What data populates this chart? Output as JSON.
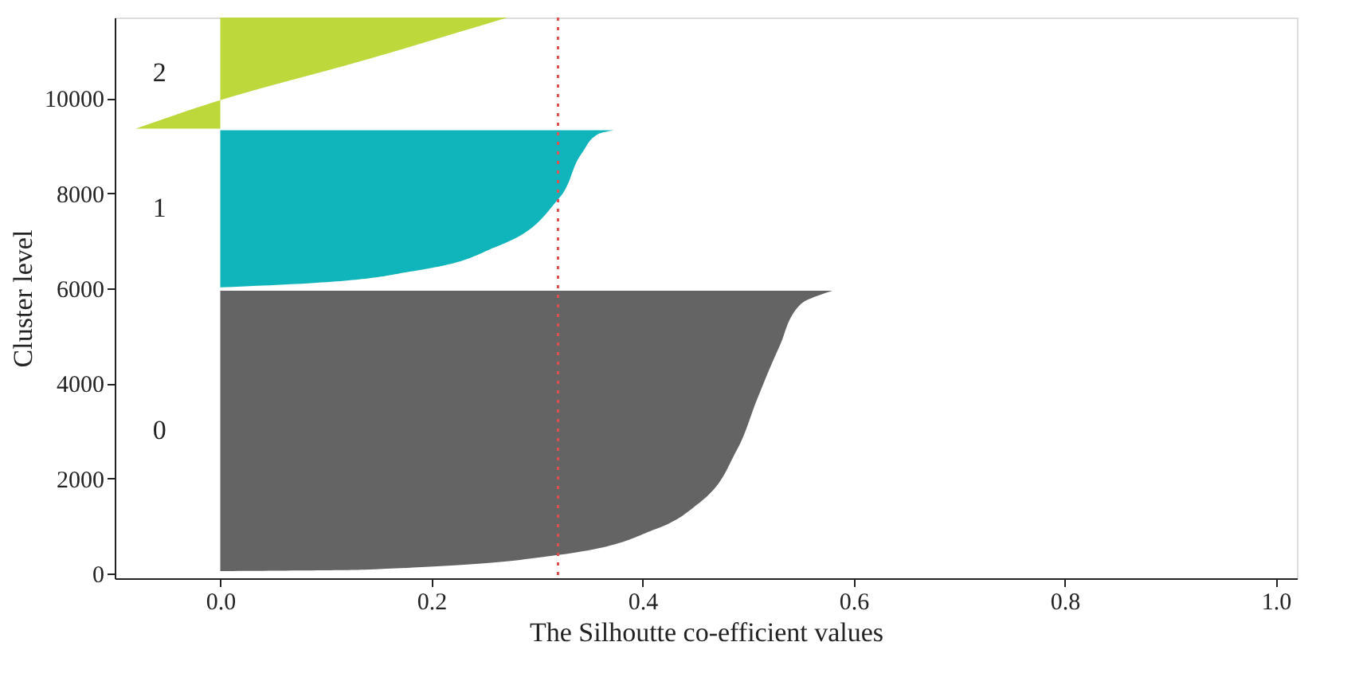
{
  "chart_data": {
    "type": "area",
    "orientation": "horizontal",
    "xlabel": "The Silhoutte co-efficient values",
    "ylabel": "Cluster level",
    "xlim": [
      -0.1,
      1.02
    ],
    "xticks": [
      {
        "value": 0,
        "label": "0.0"
      },
      0.2,
      0.4,
      0.6,
      0.8,
      {
        "value": 1,
        "label": "1.0"
      }
    ],
    "ylim": [
      -100,
      11700
    ],
    "yticks": [
      0,
      2000,
      4000,
      6000,
      8000,
      10000
    ],
    "series": [
      {
        "name": "0",
        "color": "#646464",
        "x": [
          50,
          80,
          390,
          940,
          1490,
          2580,
          3690,
          4790,
          5670,
          5950
        ],
        "values": [
          0.0,
          0.136,
          0.32,
          0.413,
          0.454,
          0.489,
          0.509,
          0.53,
          0.55,
          0.58
        ]
      },
      {
        "name": "1",
        "color": "#10b5bb",
        "x": [
          6020,
          6110,
          6380,
          6880,
          7870,
          8860,
          9250,
          9330
        ],
        "values": [
          0.0,
          0.086,
          0.187,
          0.262,
          0.32,
          0.343,
          0.358,
          0.373
        ]
      },
      {
        "name": "2",
        "color": "#bcd83a",
        "x": [
          9360,
          9960,
          10800,
          11700
        ],
        "values": [
          -0.08,
          0.0,
          0.136,
          0.272
        ]
      }
    ],
    "ref_lines": [
      {
        "axis": "x",
        "value": 0.32,
        "color": "#e05050",
        "line_style": "dotted"
      }
    ]
  }
}
